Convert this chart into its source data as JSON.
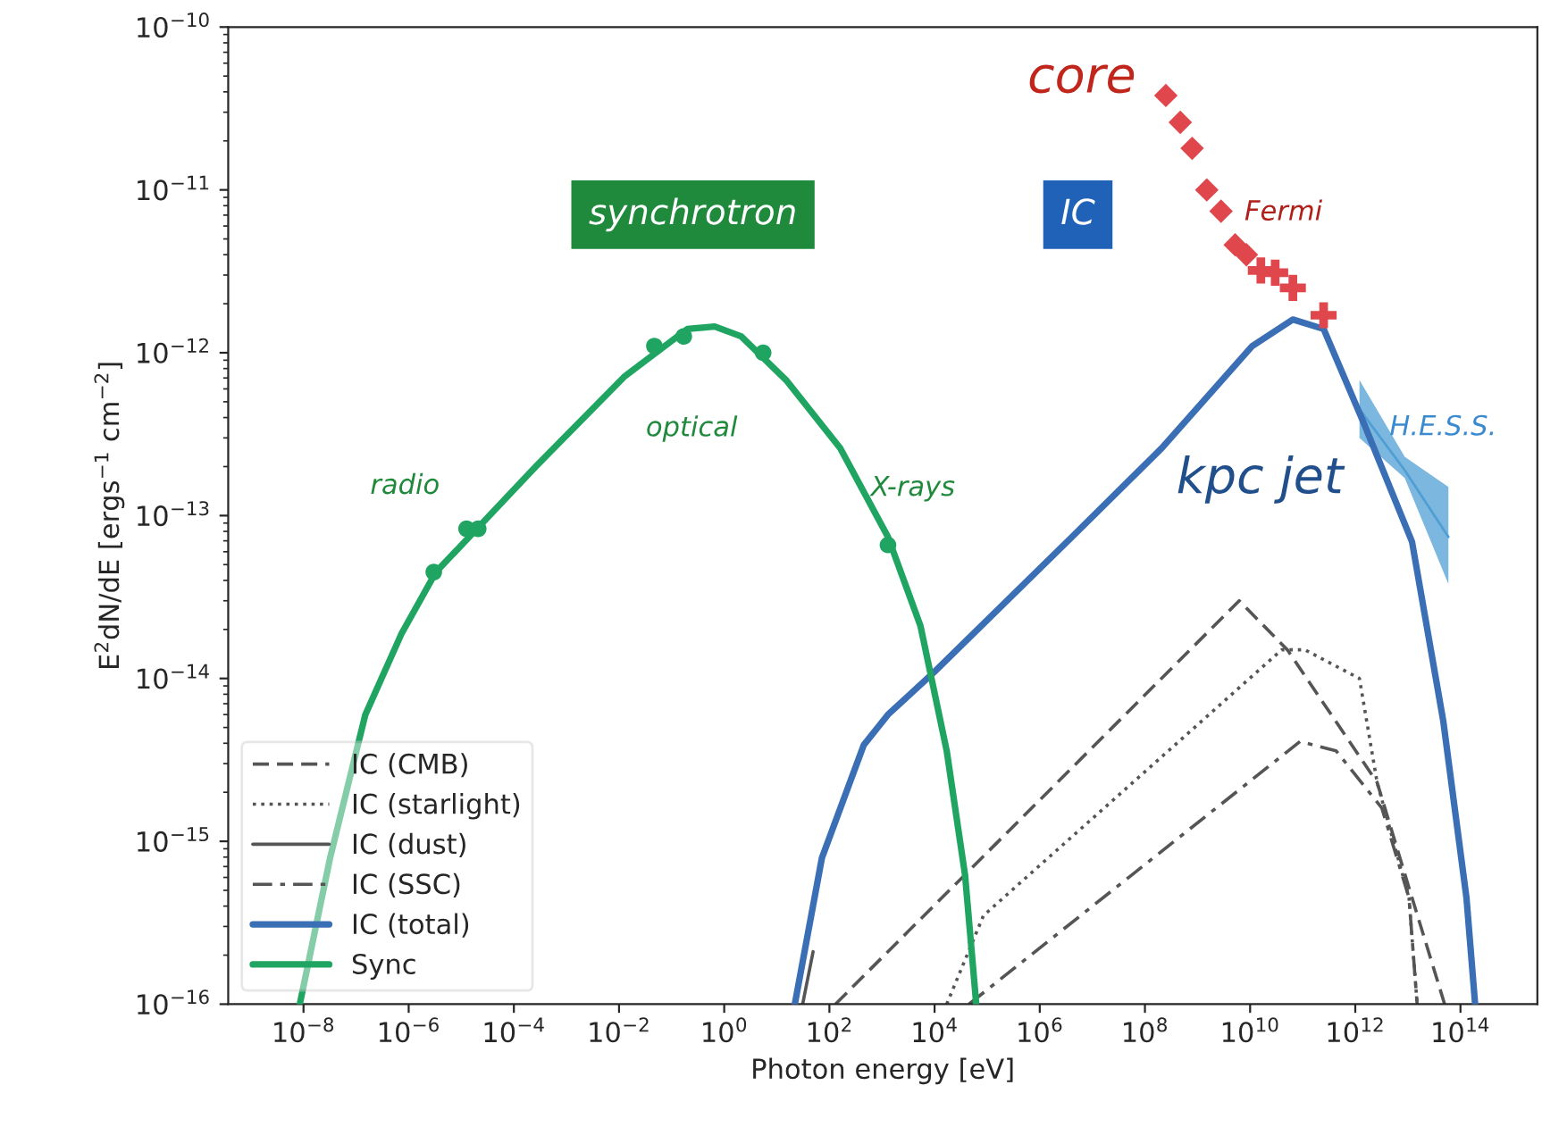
{
  "chart_data": {
    "type": "line",
    "xlabel": "Photon energy [eV]",
    "ylabel": "E$^{2}$dN/dE [ergs$^{−1}$ cm$^{−2}$]",
    "log": "xy",
    "grid": false,
    "legend": "bottom left",
    "xlim": [
      3.7e-10,
      2900000000000000.0
    ],
    "ylim": [
      1e-16,
      1e-10
    ],
    "xticks": [
      {
        "value": 1e-08,
        "label": "10$^{−8}$"
      },
      {
        "value": 1e-06,
        "label": "10$^{−6}$"
      },
      {
        "value": 0.0001,
        "label": "10$^{−4}$"
      },
      {
        "value": 0.01,
        "label": "10$^{−2}$"
      },
      {
        "value": 1,
        "label": "10$^{0}$"
      },
      {
        "value": 100.0,
        "label": "10$^{2}$"
      },
      {
        "value": 10000.0,
        "label": "10$^{4}$"
      },
      {
        "value": 1000000.0,
        "label": "10$^{6}$"
      },
      {
        "value": 100000000.0,
        "label": "10$^{8}$"
      },
      {
        "value": 10000000000.0,
        "label": "10$^{10}$"
      },
      {
        "value": 1000000000000.0,
        "label": "10$^{12}$"
      },
      {
        "value": 100000000000000.0,
        "label": "10$^{14}$"
      }
    ],
    "yticks": [
      {
        "value": 1e-16,
        "label": "10$^{−16}$"
      },
      {
        "value": 1e-15,
        "label": "10$^{−15}$"
      },
      {
        "value": 1e-14,
        "label": "10$^{−14}$"
      },
      {
        "value": 1e-13,
        "label": "10$^{−13}$"
      },
      {
        "value": 1e-12,
        "label": "10$^{−12}$"
      },
      {
        "value": 1e-11,
        "label": "10$^{−11}$"
      },
      {
        "value": 1e-10,
        "label": "10$^{−10}$"
      }
    ],
    "series": [
      {
        "name": "IC (CMB)",
        "line_style": "dashed",
        "color": "#555555",
        "x": [
          130,
          6200000000.0,
          51000000000.0,
          2600000000000.0,
          12000000000000.0,
          50000000000000.0
        ],
        "values": [
          1e-16,
          3e-14,
          1.5e-14,
          2.3e-15,
          4.5e-16,
          1e-16
        ]
      },
      {
        "name": "IC (starlight)",
        "line_style": "dotted",
        "color": "#555555",
        "x": [
          17000,
          85000,
          40000000000.0,
          110000000000.0,
          1200000000000.0,
          2600000000000.0,
          10500000000000.0,
          15000000000000.0
        ],
        "values": [
          1e-16,
          3.5e-16,
          1.5e-14,
          1.5e-14,
          1e-14,
          2.3e-15,
          4.5e-16,
          1e-16
        ]
      },
      {
        "name": "IC (dust)",
        "line_style": "solid",
        "color": "#555555",
        "x": [
          31,
          49
        ],
        "values": [
          1e-16,
          2.1e-16
        ]
      },
      {
        "name": "IC (SSC)",
        "line_style": "dashdot",
        "color": "#555555",
        "x": [
          45000,
          89000000000.0,
          430000000000.0,
          3200000000000.0,
          10500000000000.0,
          15000000000000.0
        ],
        "values": [
          1e-16,
          4.1e-15,
          3.6e-15,
          1.6e-15,
          4.5e-16,
          1e-16
        ]
      },
      {
        "name": "IC (total)",
        "line_style": "solid",
        "color": "#3a6fb5",
        "x": [
          22,
          72,
          450,
          1300,
          10000.0,
          4100000.0,
          210000000.0,
          11000000000.0,
          65000000000.0,
          250000000000.0,
          1500000000000.0,
          12000000000000.0,
          47000000000000.0,
          130000000000000.0,
          190000000000000.0
        ],
        "values": [
          1e-16,
          7.9e-16,
          3.9e-15,
          6e-15,
          1.1e-14,
          7.4e-14,
          2.6e-13,
          1.1e-12,
          1.6e-12,
          1.4e-12,
          3.6e-13,
          6.9e-14,
          5.5e-15,
          4.5e-16,
          1e-16
        ]
      },
      {
        "name": "Sync",
        "line_style": "solid",
        "color": "#1fa561",
        "x": [
          8.5e-09,
          3.2e-08,
          1.5e-07,
          7.4e-07,
          3.3e-06,
          0.00026,
          0.013,
          0.2,
          0.66,
          2.1,
          15,
          160,
          1300,
          5400,
          17000,
          38000,
          62000
        ],
        "values": [
          1e-16,
          7.9e-16,
          6e-15,
          1.9e-14,
          4.5e-14,
          2e-13,
          7.2e-13,
          1.4e-12,
          1.45e-12,
          1.26e-12,
          6.8e-13,
          2.6e-13,
          7.4e-14,
          2.1e-14,
          3.6e-15,
          6.2e-16,
          1e-16
        ]
      },
      {
        "type": "scatter",
        "marker": "circle",
        "color": "#1fa561",
        "x": [
          3e-06,
          1.26e-05,
          2.1e-05,
          0.047,
          0.17,
          5.5,
          1300
        ],
        "values": [
          4.5e-14,
          8.3e-14,
          8.3e-14,
          1.1e-12,
          1.26e-12,
          1e-12,
          6.6e-14
        ]
      },
      {
        "type": "scatter",
        "marker": "diamond",
        "color": "#e0474c",
        "x": [
          250000000.0,
          470000000.0,
          790000000.0,
          1500000000.0,
          2800000000.0,
          5200000000.0,
          8500000000.0
        ],
        "values": [
          3.8e-11,
          2.6e-11,
          1.8e-11,
          1e-11,
          7.4e-12,
          4.6e-12,
          4e-12
        ]
      },
      {
        "type": "scatter",
        "marker": "cross",
        "color": "#e0474c",
        "x": [
          16000000000.0,
          30000000000.0,
          65000000000.0,
          250000000000.0
        ],
        "values": [
          3.2e-12,
          3.1e-12,
          2.5e-12,
          1.7e-12
        ]
      },
      {
        "line_style": "solid",
        "color": "#4f9fd4",
        "x": [
          1200000000000.0,
          8700000000000.0,
          59000000000000.0
        ],
        "values": [
          4.5e-13,
          1.9e-13,
          7.4e-14
        ],
        "lower": [
          3e-13,
          1.7e-13,
          3.8e-14
        ],
        "upper": [
          6.8e-13,
          2.3e-13,
          1.5e-13
        ]
      }
    ],
    "annotations": [
      "synchrotron",
      "IC",
      "core",
      "Fermi",
      "radio",
      "optical",
      "X-rays",
      "kpc jet",
      "H.E.S.S."
    ]
  }
}
